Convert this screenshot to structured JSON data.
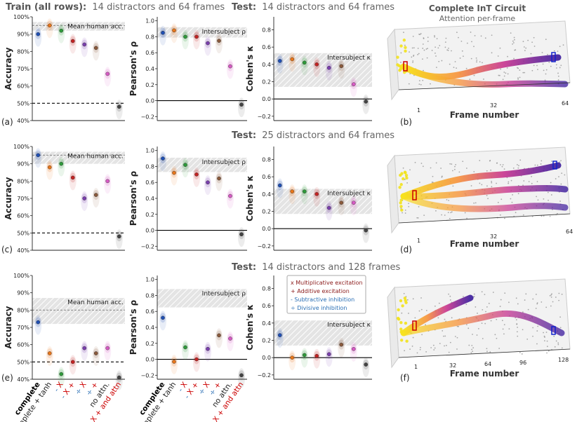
{
  "headers": {
    "row1_train_bold": "Train (all rows):",
    "row1_train_rest": "14 distractors and 64 frames",
    "row1_test_bold": "Test:",
    "row1_test_rest": "14 distractors and 64 frames",
    "row2_test_bold": "Test:",
    "row2_test_rest": "25 distractors and 64 frames",
    "row3_test_bold": "Test:",
    "row3_test_rest": "14 distractors and 128 frames"
  },
  "panel3d": {
    "title": "Complete InT Circuit",
    "subtitle": "Attention per-frame",
    "xlabel": "Frame number",
    "ticks_64": [
      "1",
      "32",
      "64"
    ],
    "ticks_128": [
      "1",
      "32",
      "64",
      "96",
      "128"
    ]
  },
  "panel_letters": [
    "(a)",
    "(b)",
    "(c)",
    "(d)",
    "(e)",
    "(f)"
  ],
  "ylabels": {
    "acc": "Accuracy",
    "pearson": "Pearson's ρ",
    "cohen": "Cohen's κ"
  },
  "annotations": {
    "human": "Mean human acc.",
    "intersub_rho": "Intersubject ρ",
    "intersub_kappa": "Intersubject κ"
  },
  "acc_ticks": [
    "40%",
    "50%",
    "60%",
    "70%",
    "80%",
    "90%",
    "100%"
  ],
  "corr_ticks": [
    "−0.2",
    "0.0",
    "0.2",
    "0.4",
    "0.6",
    "0.8",
    "1.0"
  ],
  "categories": {
    "complete": "complete",
    "complete_tanh": "complete + tanh",
    "sym_x": "X",
    "sym_plus": "+",
    "sym_minus": "-",
    "sym_div": "÷",
    "no_attn": "no attn.",
    "and_attn": "X + and attn"
  },
  "legend": {
    "mult": "x  Multiplicative excitation",
    "add": "+  Additive excitation",
    "sub": "-  Subtractive inhibition",
    "div": "÷  Divisive inhibition"
  },
  "colors": [
    "#1f4fb4",
    "#e8761a",
    "#2e9a3a",
    "#c42323",
    "#7a3fae",
    "#8a5a3c",
    "#d75ac4",
    "#444444"
  ],
  "chart_data": [
    {
      "type": "scatter",
      "row": 1,
      "xcategories": [
        "complete",
        "complete + tanh",
        "- X",
        "- + X",
        "÷ X",
        "÷ +",
        "no attn.",
        "X + and attn"
      ],
      "accuracy": {
        "values": [
          90,
          95,
          92,
          86,
          84,
          82,
          67,
          48
        ],
        "ylim": [
          40,
          100
        ],
        "human_band": [
          92,
          97
        ],
        "human_mean": 95,
        "chance": 50
      },
      "pearson": {
        "values": [
          0.85,
          0.88,
          0.8,
          0.8,
          0.72,
          0.75,
          0.43,
          -0.05
        ],
        "ylim": [
          -0.25,
          1.05
        ],
        "intersub_band": [
          0.79,
          0.92
        ]
      },
      "cohen": {
        "values": [
          0.44,
          0.46,
          0.42,
          0.4,
          0.36,
          0.38,
          0.17,
          -0.03
        ],
        "ylim": [
          -0.25,
          0.95
        ],
        "intersub_band": [
          0.14,
          0.53
        ]
      }
    },
    {
      "type": "scatter",
      "row": 2,
      "xcategories": [
        "complete",
        "complete + tanh",
        "- X",
        "- + X",
        "÷ X",
        "÷ +",
        "no attn.",
        "X + and attn"
      ],
      "accuracy": {
        "values": [
          95,
          88,
          90,
          82,
          70,
          72,
          80,
          48
        ],
        "ylim": [
          40,
          100
        ],
        "human_band": [
          90,
          97
        ],
        "human_mean": 95,
        "chance": 50
      },
      "pearson": {
        "values": [
          0.9,
          0.72,
          0.82,
          0.7,
          0.6,
          0.65,
          0.43,
          -0.05
        ],
        "ylim": [
          -0.25,
          1.05
        ],
        "intersub_band": [
          0.73,
          0.91
        ]
      },
      "cohen": {
        "values": [
          0.5,
          0.43,
          0.43,
          0.4,
          0.24,
          0.3,
          0.3,
          -0.02
        ],
        "ylim": [
          -0.25,
          0.95
        ],
        "intersub_band": [
          0.17,
          0.46
        ]
      }
    },
    {
      "type": "scatter",
      "row": 3,
      "xcategories": [
        "complete",
        "complete + tanh",
        "- X",
        "- + X",
        "÷ X",
        "÷ +",
        "no attn.",
        "X + and attn"
      ],
      "accuracy": {
        "values": [
          73,
          55,
          43,
          50,
          58,
          55,
          58,
          41
        ],
        "ylim": [
          40,
          100
        ],
        "human_band": [
          72,
          87
        ],
        "human_mean": 80,
        "chance": 50
      },
      "pearson": {
        "values": [
          0.52,
          -0.03,
          0.15,
          0.0,
          0.13,
          0.3,
          0.26,
          -0.2
        ],
        "ylim": [
          -0.25,
          1.05
        ],
        "intersub_band": [
          0.65,
          0.88
        ]
      },
      "cohen": {
        "values": [
          0.26,
          0.0,
          0.03,
          0.02,
          0.04,
          0.15,
          0.1,
          -0.08
        ],
        "ylim": [
          -0.25,
          0.95
        ],
        "intersub_band": [
          0.14,
          0.43
        ]
      }
    }
  ]
}
